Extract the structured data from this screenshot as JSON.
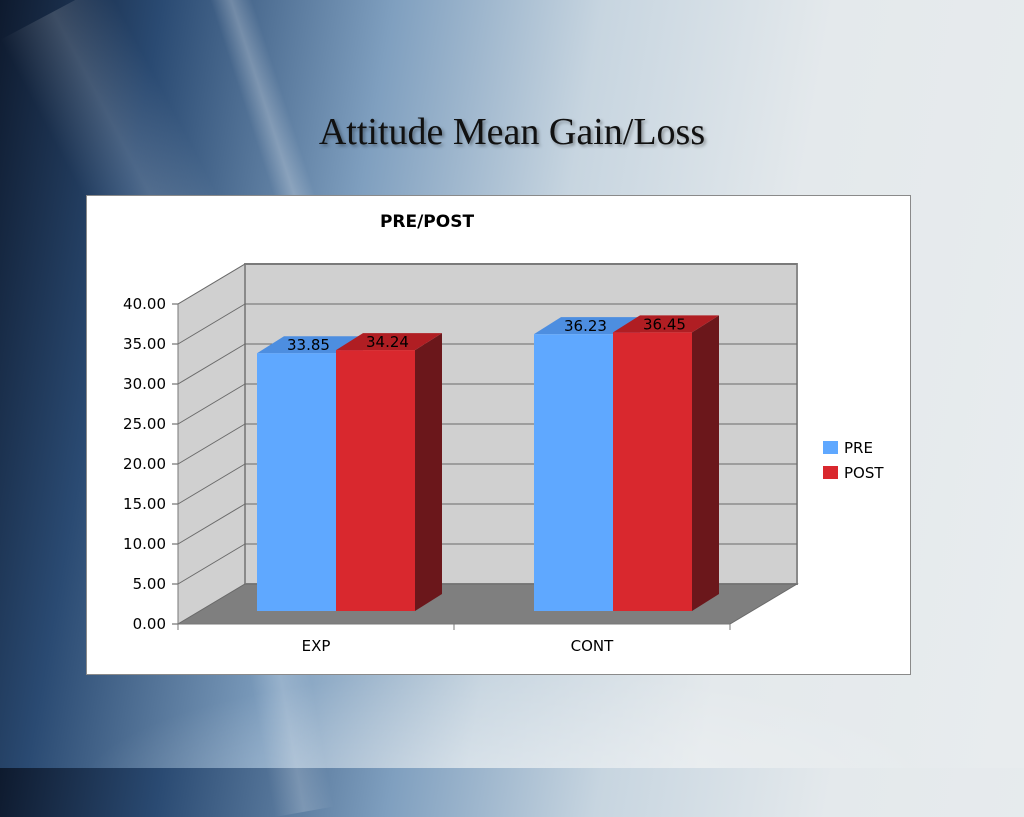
{
  "slide": {
    "title": "Attitude Mean Gain/Loss"
  },
  "colors": {
    "pre": "#5fa8ff",
    "post": "#d9282e",
    "wall": "#d0d0d0",
    "floor": "#7f7f7f"
  },
  "chart_data": {
    "type": "bar",
    "title": "PRE/POST",
    "categories": [
      "EXP",
      "CONT"
    ],
    "series": [
      {
        "name": "PRE",
        "values": [
          33.85,
          36.23
        ]
      },
      {
        "name": "POST",
        "values": [
          34.24,
          36.45
        ]
      }
    ],
    "ylim": [
      0,
      40
    ],
    "yticks": [
      "0.00",
      "5.00",
      "10.00",
      "15.00",
      "20.00",
      "25.00",
      "30.00",
      "35.00",
      "40.00"
    ],
    "data_labels": [
      "33.85",
      "36.23",
      "34.24",
      "36.45"
    ],
    "xlabel": "",
    "ylabel": "",
    "grid": true,
    "legend": "right",
    "style": "3d-clustered-column"
  }
}
